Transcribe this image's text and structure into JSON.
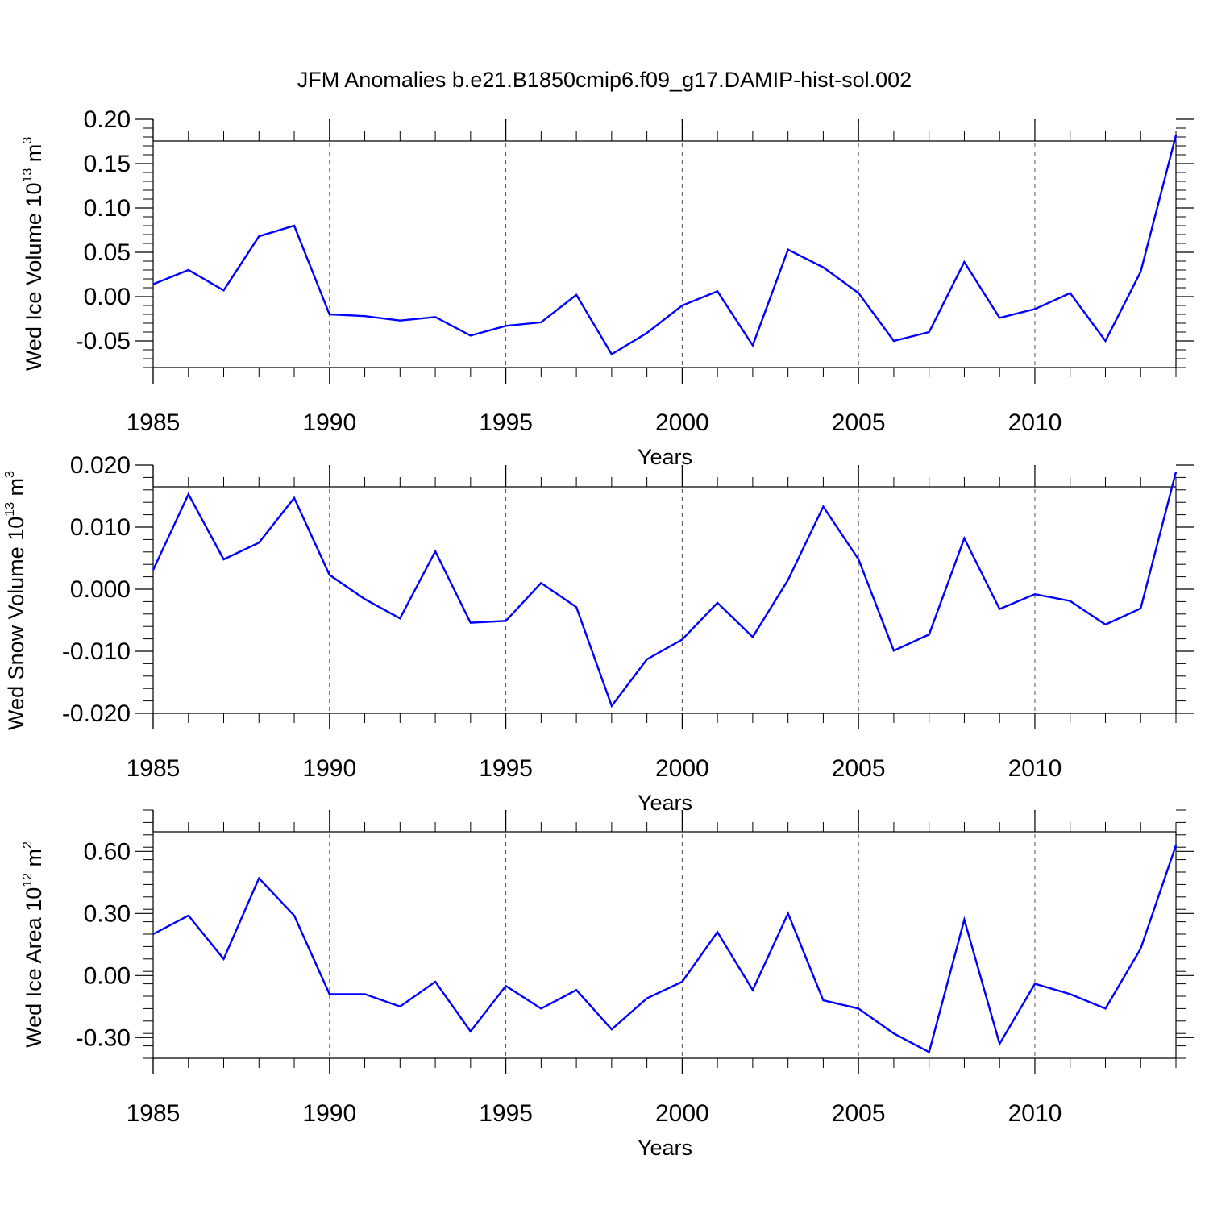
{
  "title": "JFM Anomalies b.e21.B1850cmip6.f09_g17.DAMIP-hist-sol.002",
  "line_color": "#0000ff",
  "chart_data": [
    {
      "type": "line",
      "title": "",
      "xlabel": "Years",
      "ylabel": {
        "main": "Wed Ice Volume 10",
        "sup": "13",
        "unit": " m",
        "unit_sup": "3"
      },
      "xlim": [
        1985,
        2014
      ],
      "ylim": [
        -0.08,
        0.2
      ],
      "xticks": [
        1985,
        1990,
        1995,
        2000,
        2005,
        2010
      ],
      "yticks": [
        0.2,
        0.15,
        0.1,
        0.05,
        0.0,
        -0.05
      ],
      "ytick_labels": [
        "0.20",
        "0.15",
        "0.10",
        "0.05",
        "0.00",
        "-0.05"
      ],
      "grid": "vertical dashed at major x ticks",
      "x": [
        1985,
        1986,
        1987,
        1988,
        1989,
        1990,
        1991,
        1992,
        1993,
        1994,
        1995,
        1996,
        1997,
        1998,
        1999,
        2000,
        2001,
        2002,
        2003,
        2004,
        2005,
        2006,
        2007,
        2008,
        2009,
        2010,
        2011,
        2012,
        2013,
        2014
      ],
      "values": [
        0.014,
        0.03,
        0.007,
        0.068,
        0.08,
        -0.02,
        -0.022,
        -0.027,
        -0.023,
        -0.044,
        -0.033,
        -0.029,
        0.002,
        -0.065,
        -0.041,
        -0.01,
        0.006,
        -0.055,
        0.053,
        0.033,
        0.004,
        -0.05,
        -0.04,
        0.039,
        -0.024,
        -0.014,
        0.004,
        -0.05,
        0.028,
        0.182
      ]
    },
    {
      "type": "line",
      "title": "",
      "xlabel": "Years",
      "ylabel": {
        "main": "Wed Snow Volume 10",
        "sup": "13",
        "unit": " m",
        "unit_sup": "3"
      },
      "xlim": [
        1985,
        2014
      ],
      "ylim": [
        -0.02,
        0.02
      ],
      "xticks": [
        1985,
        1990,
        1995,
        2000,
        2005,
        2010
      ],
      "yticks": [
        0.02,
        0.01,
        0.0,
        -0.01,
        -0.02
      ],
      "ytick_labels": [
        "0.020",
        "0.010",
        "0.000",
        "-0.010",
        "-0.020"
      ],
      "grid": "vertical dashed at major x ticks",
      "x": [
        1985,
        1986,
        1987,
        1988,
        1989,
        1990,
        1991,
        1992,
        1993,
        1994,
        1995,
        1996,
        1997,
        1998,
        1999,
        2000,
        2001,
        2002,
        2003,
        2004,
        2005,
        2006,
        2007,
        2008,
        2009,
        2010,
        2011,
        2012,
        2013,
        2014
      ],
      "values": [
        0.0031,
        0.0153,
        0.0048,
        0.0075,
        0.0147,
        0.0023,
        -0.0016,
        -0.0047,
        0.0061,
        -0.0054,
        -0.0051,
        0.001,
        -0.0029,
        -0.0188,
        -0.0113,
        -0.0081,
        -0.0022,
        -0.0077,
        0.0015,
        0.0133,
        0.0048,
        -0.0099,
        -0.0073,
        0.0082,
        -0.0032,
        -0.0008,
        -0.0019,
        -0.0057,
        -0.0031,
        0.0189
      ]
    },
    {
      "type": "line",
      "title": "",
      "xlabel": "Years",
      "ylabel": {
        "main": "Wed Ice Area 10",
        "sup": "12",
        "unit": " m",
        "unit_sup": "2"
      },
      "xlim": [
        1985,
        2014
      ],
      "ylim": [
        -0.4,
        0.8
      ],
      "xticks": [
        1985,
        1990,
        1995,
        2000,
        2005,
        2010
      ],
      "yticks": [
        0.6,
        0.3,
        0.0,
        -0.3
      ],
      "ytick_labels": [
        "0.60",
        "0.30",
        "0.00",
        "-0.30"
      ],
      "grid": "vertical dashed at major x ticks",
      "x": [
        1985,
        1986,
        1987,
        1988,
        1989,
        1990,
        1991,
        1992,
        1993,
        1994,
        1995,
        1996,
        1997,
        1998,
        1999,
        2000,
        2001,
        2002,
        2003,
        2004,
        2005,
        2006,
        2007,
        2008,
        2009,
        2010,
        2011,
        2012,
        2013,
        2014
      ],
      "values": [
        0.2,
        0.29,
        0.08,
        0.47,
        0.29,
        -0.09,
        -0.09,
        -0.15,
        -0.03,
        -0.27,
        -0.05,
        -0.16,
        -0.07,
        -0.26,
        -0.11,
        -0.03,
        0.21,
        -0.07,
        0.3,
        -0.12,
        -0.16,
        -0.28,
        -0.37,
        0.27,
        -0.33,
        -0.04,
        -0.09,
        -0.16,
        0.13,
        0.63
      ]
    }
  ]
}
